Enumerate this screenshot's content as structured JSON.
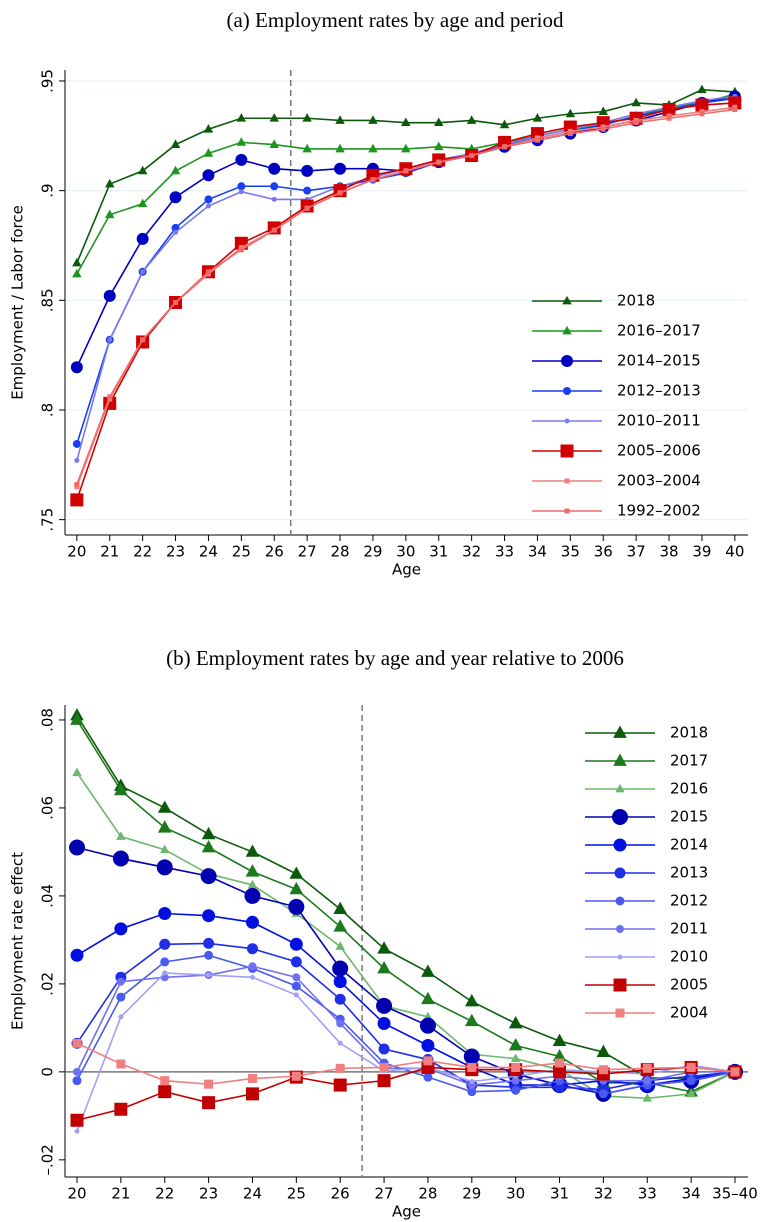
{
  "chart_data": [
    {
      "type": "line",
      "title": "(a) Employment rates by age and period",
      "x_label": "Age",
      "y_label": "Employment / Labor force",
      "x": [
        20,
        21,
        22,
        23,
        24,
        25,
        26,
        27,
        28,
        29,
        30,
        31,
        32,
        33,
        34,
        35,
        36,
        37,
        38,
        39,
        40
      ],
      "xlim": [
        19.64,
        40.4
      ],
      "xticks": [
        20,
        21,
        22,
        23,
        24,
        25,
        26,
        27,
        28,
        29,
        30,
        31,
        32,
        33,
        34,
        35,
        36,
        37,
        38,
        39,
        40
      ],
      "ylim": [
        0.743,
        0.955
      ],
      "yticks": [
        {
          "value": 0.75,
          "label": ".75"
        },
        {
          "value": 0.8,
          "label": ".8"
        },
        {
          "value": 0.85,
          "label": ".85"
        },
        {
          "value": 0.9,
          "label": ".9"
        },
        {
          "value": 0.95,
          "label": ".95"
        }
      ],
      "grid": true,
      "legend": "lower right",
      "vline": 26.5,
      "series": [
        {
          "name": "2018",
          "color": "#0b5a0b",
          "marker": "triangle",
          "values": [
            0.867,
            0.903,
            0.909,
            0.921,
            0.928,
            0.933,
            0.933,
            0.933,
            0.932,
            0.932,
            0.931,
            0.931,
            0.932,
            0.93,
            0.933,
            0.935,
            0.936,
            0.94,
            0.939,
            0.946,
            0.945
          ]
        },
        {
          "name": "2016–2017",
          "color": "#1c961c",
          "marker": "triangle",
          "values": [
            0.862,
            0.889,
            0.894,
            0.909,
            0.917,
            0.922,
            0.921,
            0.919,
            0.919,
            0.919,
            0.919,
            0.92,
            0.919,
            0.922,
            0.925,
            0.928,
            0.93,
            0.934,
            0.938,
            0.94,
            0.944
          ]
        },
        {
          "name": "2014–2015",
          "color": "#0000c0",
          "marker": "circle",
          "values": [
            0.8195,
            0.852,
            0.878,
            0.897,
            0.907,
            0.914,
            0.91,
            0.909,
            0.91,
            0.91,
            0.909,
            0.913,
            0.916,
            0.92,
            0.923,
            0.926,
            0.929,
            0.932,
            0.936,
            0.94,
            0.943
          ]
        },
        {
          "name": "2012–2013",
          "color": "#1a3ff0",
          "marker": "circle",
          "values": [
            0.7845,
            0.832,
            0.863,
            0.883,
            0.896,
            0.902,
            0.902,
            0.9,
            0.902,
            0.905,
            0.908,
            0.913,
            0.916,
            0.921,
            0.924,
            0.927,
            0.93,
            0.934,
            0.937,
            0.94,
            0.942
          ]
        },
        {
          "name": "2010–2011",
          "color": "#7a7af0",
          "marker": "circle",
          "values": [
            0.777,
            0.832,
            0.863,
            0.881,
            0.893,
            0.8995,
            0.896,
            0.896,
            0.902,
            0.906,
            0.91,
            0.914,
            0.917,
            0.921,
            0.925,
            0.928,
            0.931,
            0.935,
            0.938,
            0.941,
            0.943
          ]
        },
        {
          "name": "2005–2006",
          "color": "#d00000",
          "marker": "square",
          "values": [
            0.759,
            0.803,
            0.831,
            0.849,
            0.863,
            0.876,
            0.883,
            0.893,
            0.9,
            0.907,
            0.91,
            0.914,
            0.916,
            0.922,
            0.926,
            0.929,
            0.931,
            0.933,
            0.937,
            0.939,
            0.94
          ]
        },
        {
          "name": "2003–2004",
          "color": "#f08080",
          "marker": "square",
          "values": [
            0.765,
            0.805,
            0.832,
            0.849,
            0.862,
            0.874,
            0.882,
            0.892,
            0.899,
            0.905,
            0.909,
            0.913,
            0.916,
            0.92,
            0.924,
            0.927,
            0.929,
            0.932,
            0.934,
            0.936,
            0.938
          ]
        },
        {
          "name": "1992–2002",
          "color": "#f06a6a",
          "marker": "square",
          "values": [
            0.766,
            0.806,
            0.832,
            0.849,
            0.863,
            0.873,
            0.882,
            0.892,
            0.899,
            0.905,
            0.909,
            0.913,
            0.916,
            0.92,
            0.923,
            0.926,
            0.928,
            0.931,
            0.933,
            0.935,
            0.937
          ]
        }
      ]
    },
    {
      "type": "line",
      "title": "(b) Employment rates by age and year relative to 2006",
      "x_label": "Age",
      "y_label": "Employment rate effect",
      "categories": [
        "20",
        "21",
        "22",
        "23",
        "24",
        "25",
        "26",
        "27",
        "28",
        "29",
        "30",
        "31",
        "32",
        "33",
        "34",
        "35–40"
      ],
      "ylim": [
        -0.0239,
        0.0834
      ],
      "yticks": [
        {
          "value": -0.02,
          "label": "–.02"
        },
        0,
        {
          "value": 0.02,
          "label": ".02"
        },
        {
          "value": 0.04,
          "label": ".04"
        },
        {
          "value": 0.06,
          "label": ".06"
        },
        {
          "value": 0.08,
          "label": ".08"
        }
      ],
      "grid": false,
      "legend": "upper right",
      "vline": 26.5,
      "hline": 0,
      "series": [
        {
          "name": "2018",
          "color": "#0b5a0b",
          "marker": "triangle",
          "values": [
            0.081,
            0.065,
            0.06,
            0.054,
            0.05,
            0.045,
            0.037,
            0.028,
            0.0227,
            0.016,
            0.011,
            0.007,
            0.0045,
            -0.0014,
            -0.0014,
            0
          ]
        },
        {
          "name": "2017",
          "color": "#1c7a1c",
          "marker": "triangle",
          "values": [
            0.08,
            0.064,
            0.0555,
            0.051,
            0.0455,
            0.0415,
            0.033,
            0.0235,
            0.0165,
            0.0115,
            0.006,
            0.0035,
            -0.0025,
            -0.0025,
            -0.0045,
            0
          ]
        },
        {
          "name": "2016",
          "color": "#6cb86c",
          "marker": "triangle",
          "values": [
            0.068,
            0.0535,
            0.0505,
            0.045,
            0.0425,
            0.036,
            0.0285,
            0.015,
            0.0125,
            0.004,
            0.003,
            0.0005,
            -0.0055,
            -0.006,
            -0.005,
            0
          ]
        },
        {
          "name": "2015",
          "color": "#0000b0",
          "marker": "circle",
          "values": [
            0.051,
            0.0485,
            0.0465,
            0.0445,
            0.04,
            0.0375,
            0.0235,
            0.015,
            0.0105,
            0.0035,
            -0.0005,
            -0.003,
            -0.005,
            -0.003,
            -0.002,
            0
          ]
        },
        {
          "name": "2014",
          "color": "#0010e0",
          "marker": "circle",
          "values": [
            0.0265,
            0.0325,
            0.036,
            0.0355,
            0.034,
            0.029,
            0.0205,
            0.011,
            0.006,
            0.001,
            -0.003,
            -0.003,
            -0.002,
            -0.003,
            -0.0015,
            0
          ]
        },
        {
          "name": "2013",
          "color": "#1f2fe8",
          "marker": "circle",
          "values": [
            0.0065,
            0.0215,
            0.029,
            0.0292,
            0.028,
            0.025,
            0.0165,
            0.0052,
            0.0028,
            -0.003,
            -0.0035,
            -0.0035,
            -0.004,
            -0.002,
            -0.001,
            0
          ]
        },
        {
          "name": "2012",
          "color": "#4a5af0",
          "marker": "circle",
          "values": [
            -0.002,
            0.017,
            0.025,
            0.0265,
            0.0235,
            0.0195,
            0.012,
            0.002,
            -0.0012,
            -0.0045,
            -0.0042,
            -0.002,
            -0.005,
            -0.003,
            -0.002,
            0
          ]
        },
        {
          "name": "2011",
          "color": "#7070f0",
          "marker": "circle",
          "values": [
            0,
            0.0205,
            0.0215,
            0.022,
            0.024,
            0.0215,
            0.011,
            0.0008,
            0.0008,
            -0.003,
            -0.002,
            -0.001,
            -0.002,
            -0.002,
            0,
            0
          ]
        },
        {
          "name": "2010",
          "color": "#a0a0f5",
          "marker": "circle",
          "values": [
            -0.0135,
            0.0125,
            0.0225,
            0.022,
            0.0215,
            0.0175,
            0.0065,
            0.0002,
            0.001,
            -0.0022,
            -0.001,
            0.0005,
            0,
            -0.0005,
            0.0015,
            0
          ]
        },
        {
          "name": "2005",
          "color": "#c00000",
          "marker": "square",
          "values": [
            -0.011,
            -0.0085,
            -0.0045,
            -0.007,
            -0.005,
            -0.0012,
            -0.003,
            -0.002,
            0.001,
            0.0005,
            0.0005,
            0,
            -0.0005,
            0.0005,
            0.001,
            0
          ]
        },
        {
          "name": "2004",
          "color": "#f08080",
          "marker": "square",
          "values": [
            0.0065,
            0.0018,
            -0.002,
            -0.0028,
            -0.0015,
            -0.001,
            0.0008,
            0.001,
            0.0025,
            0.001,
            0.001,
            0.002,
            0.0005,
            0.0008,
            0.001,
            0
          ]
        }
      ]
    }
  ]
}
